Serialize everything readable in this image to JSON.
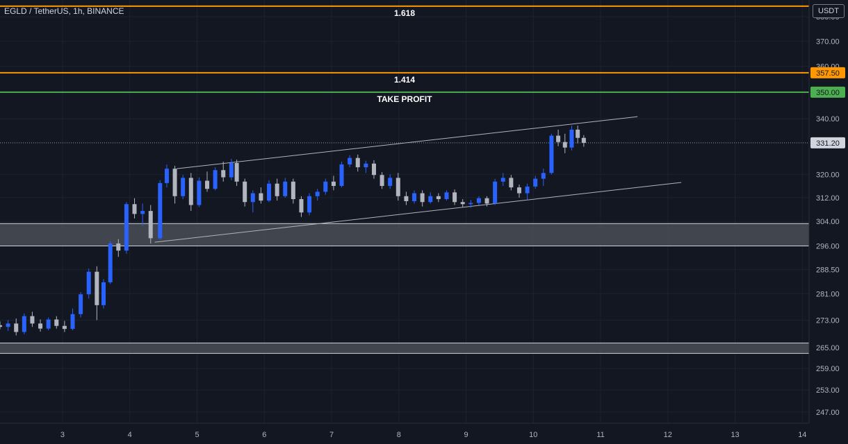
{
  "header": {
    "symbol": "EGLD / TetherUS, 1h, BINANCE",
    "currency": "USDT"
  },
  "colors": {
    "background": "#131722",
    "grid": "#1e2230",
    "up": "#2962ff",
    "down": "#b2b5be",
    "fib": "#ff9800",
    "take_profit": "#4caf50",
    "zone_fill": "#4a4d55",
    "trendline": "#b2b5be"
  },
  "chart_data": {
    "type": "candlestick",
    "title": "EGLD / TetherUS, 1h, BINANCE",
    "y_axis": {
      "scale": "log",
      "range": [
        244,
        387
      ],
      "ticks": [
        "380.00",
        "370.00",
        "360.00",
        "340.00",
        "320.00",
        "312.00",
        "304.00",
        "296.00",
        "288.50",
        "281.00",
        "273.00",
        "265.00",
        "259.00",
        "253.00",
        "247.00"
      ]
    },
    "x_axis": {
      "range": [
        2.07,
        14.1
      ],
      "ticks": [
        "3",
        "4",
        "5",
        "6",
        "7",
        "8",
        "9",
        "10",
        "11",
        "12",
        "13",
        "14"
      ]
    },
    "horizontal_lines": [
      {
        "label": "1.618",
        "price": 384.4,
        "price_label": "",
        "color": "#ff9800"
      },
      {
        "label": "1.414",
        "price": 357.5,
        "price_label": "357.50",
        "color": "#ff9800"
      },
      {
        "label": "TAKE PROFIT",
        "price": 350.0,
        "price_label": "350.00",
        "color": "#4caf50"
      }
    ],
    "last_price": {
      "price": 331.2,
      "label": "331.20"
    },
    "zones": [
      {
        "from": 296.0,
        "to": 303.3
      },
      {
        "from": 263.3,
        "to": 266.3
      }
    ],
    "trendlines": [
      {
        "x1": 4.7,
        "y1": 322,
        "x2": 11.55,
        "y2": 340.8
      },
      {
        "x1": 4.37,
        "y1": 297.2,
        "x2": 12.2,
        "y2": 317.2
      }
    ],
    "candles": [
      [
        2.07,
        271.5,
        272.6,
        270.3,
        271.0
      ],
      [
        2.19,
        271.0,
        273.0,
        269.8,
        272.0
      ],
      [
        2.31,
        272.0,
        273.5,
        268.5,
        269.5
      ],
      [
        2.43,
        269.5,
        275.0,
        268.8,
        274.2
      ],
      [
        2.55,
        274.2,
        275.5,
        271.0,
        272.0
      ],
      [
        2.67,
        272.0,
        273.2,
        269.6,
        270.5
      ],
      [
        2.79,
        270.5,
        273.8,
        270.0,
        273.2
      ],
      [
        2.91,
        273.2,
        274.2,
        270.5,
        271.3
      ],
      [
        3.03,
        271.3,
        272.8,
        269.5,
        270.4
      ],
      [
        3.15,
        270.4,
        276.5,
        270.0,
        274.8
      ],
      [
        3.27,
        274.8,
        281.5,
        273.8,
        280.8
      ],
      [
        3.39,
        280.8,
        288.8,
        279.5,
        287.8
      ],
      [
        3.51,
        287.8,
        289.5,
        273.0,
        277.5
      ],
      [
        3.61,
        277.5,
        285.5,
        276.5,
        284.5
      ],
      [
        3.71,
        284.5,
        297.5,
        284.0,
        296.8
      ],
      [
        3.83,
        296.8,
        298.2,
        292.5,
        294.5
      ],
      [
        3.95,
        294.5,
        310.5,
        293.5,
        309.8
      ],
      [
        4.07,
        309.8,
        311.8,
        305.0,
        306.5
      ],
      [
        4.19,
        306.5,
        310.0,
        302.5,
        307.5
      ],
      [
        4.31,
        307.5,
        309.5,
        296.8,
        298.5
      ],
      [
        4.45,
        298.5,
        318.0,
        298.0,
        317.0
      ],
      [
        4.55,
        317.0,
        323.5,
        315.5,
        322.0
      ],
      [
        4.67,
        322.0,
        323.0,
        310.0,
        312.5
      ],
      [
        4.79,
        312.5,
        319.8,
        311.5,
        318.8
      ],
      [
        4.91,
        318.8,
        320.5,
        307.5,
        309.5
      ],
      [
        5.03,
        309.5,
        319.0,
        308.8,
        317.8
      ],
      [
        5.15,
        317.8,
        321.0,
        314.0,
        315.0
      ],
      [
        5.27,
        315.0,
        322.5,
        314.5,
        321.5
      ],
      [
        5.39,
        321.5,
        324.5,
        317.5,
        319.0
      ],
      [
        5.51,
        319.0,
        325.5,
        318.0,
        324.0
      ],
      [
        5.59,
        324.0,
        325.2,
        316.0,
        317.5
      ],
      [
        5.71,
        317.5,
        318.5,
        309.0,
        310.5
      ],
      [
        5.83,
        310.5,
        314.5,
        307.0,
        313.5
      ],
      [
        5.95,
        313.5,
        315.5,
        310.0,
        311.0
      ],
      [
        6.07,
        311.0,
        318.0,
        310.5,
        316.8
      ],
      [
        6.19,
        316.8,
        318.5,
        311.0,
        312.5
      ],
      [
        6.31,
        312.5,
        318.8,
        312.0,
        317.5
      ],
      [
        6.43,
        317.5,
        318.5,
        310.0,
        311.5
      ],
      [
        6.55,
        311.5,
        312.5,
        305.5,
        307.0
      ],
      [
        6.67,
        307.0,
        313.5,
        306.0,
        312.5
      ],
      [
        6.79,
        312.5,
        315.0,
        311.0,
        314.0
      ],
      [
        6.91,
        314.0,
        318.5,
        313.0,
        317.5
      ],
      [
        7.03,
        317.5,
        319.5,
        314.5,
        316.0
      ],
      [
        7.15,
        316.0,
        324.5,
        315.5,
        323.5
      ],
      [
        7.27,
        323.5,
        326.8,
        322.5,
        325.8
      ],
      [
        7.39,
        325.8,
        327.0,
        321.0,
        322.5
      ],
      [
        7.51,
        322.5,
        324.8,
        320.5,
        323.8
      ],
      [
        7.63,
        323.8,
        325.0,
        318.5,
        319.8
      ],
      [
        7.75,
        319.8,
        320.8,
        315.0,
        316.0
      ],
      [
        7.87,
        316.0,
        320.0,
        315.0,
        318.8
      ],
      [
        7.99,
        318.8,
        320.5,
        311.0,
        312.5
      ],
      [
        8.11,
        312.5,
        314.0,
        309.5,
        310.8
      ],
      [
        8.23,
        310.8,
        314.5,
        310.0,
        313.5
      ],
      [
        8.35,
        313.5,
        314.5,
        309.0,
        310.5
      ],
      [
        8.47,
        310.5,
        313.8,
        310.0,
        312.5
      ],
      [
        8.59,
        312.5,
        313.5,
        310.5,
        311.5
      ],
      [
        8.71,
        311.5,
        314.5,
        311.0,
        313.8
      ],
      [
        8.83,
        313.8,
        314.8,
        309.5,
        310.5
      ],
      [
        8.95,
        310.5,
        311.5,
        308.8,
        309.8
      ],
      [
        9.07,
        309.8,
        311.2,
        308.5,
        310.2
      ],
      [
        9.19,
        310.2,
        312.5,
        309.5,
        311.8
      ],
      [
        9.31,
        311.8,
        312.5,
        309.0,
        310.0
      ],
      [
        9.43,
        310.0,
        318.5,
        309.5,
        317.5
      ],
      [
        9.55,
        317.5,
        320.5,
        316.0,
        318.8
      ],
      [
        9.67,
        318.8,
        319.8,
        314.5,
        315.5
      ],
      [
        9.79,
        315.5,
        316.5,
        312.0,
        313.5
      ],
      [
        9.91,
        313.5,
        316.8,
        311.0,
        315.8
      ],
      [
        10.03,
        315.8,
        319.5,
        315.0,
        318.5
      ],
      [
        10.15,
        318.5,
        322.0,
        316.0,
        320.5
      ],
      [
        10.27,
        320.5,
        334.5,
        320.0,
        333.8
      ],
      [
        10.37,
        333.8,
        336.0,
        330.0,
        331.5
      ],
      [
        10.47,
        331.5,
        334.5,
        327.5,
        329.5
      ],
      [
        10.57,
        329.5,
        337.5,
        328.5,
        336.0
      ],
      [
        10.66,
        336.0,
        337.5,
        331.0,
        333.0
      ],
      [
        10.75,
        333.0,
        334.0,
        329.8,
        331.2
      ]
    ]
  }
}
